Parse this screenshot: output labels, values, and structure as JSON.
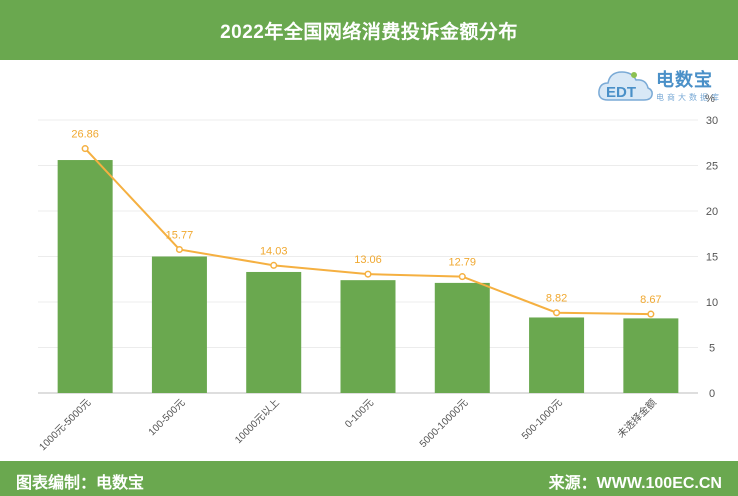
{
  "header": {
    "title": "2022年全国网络消费投诉金额分布"
  },
  "footer": {
    "left": "图表编制：电数宝",
    "right": "来源：WWW.100EC.CN"
  },
  "logo": {
    "brand": "电数宝",
    "sub": "电商大数据库",
    "mark": "EDT"
  },
  "colors": {
    "bar": "#6aa84f",
    "line": "#f5b041",
    "header": "#6aa84f"
  },
  "chart_data": {
    "type": "bar",
    "categories": [
      "1000元-5000元",
      "100-500元",
      "10000元以上",
      "0-100元",
      "5000-10000元",
      "500-1000元",
      "未选择金额"
    ],
    "series": [
      {
        "type": "bar",
        "values": [
          25.6,
          15.0,
          13.3,
          12.4,
          12.1,
          8.3,
          8.2
        ]
      },
      {
        "type": "line",
        "values": [
          26.86,
          15.77,
          14.03,
          13.06,
          12.79,
          8.82,
          8.67
        ]
      }
    ],
    "data_labels": [
      "26.86",
      "15.77",
      "14.03",
      "13.06",
      "12.79",
      "8.82",
      "8.67"
    ],
    "ylabel": "%",
    "ylim": [
      0,
      30
    ],
    "yticks": [
      0,
      5,
      10,
      15,
      20,
      25,
      30
    ],
    "grid": true,
    "y_axis_position": "right"
  }
}
